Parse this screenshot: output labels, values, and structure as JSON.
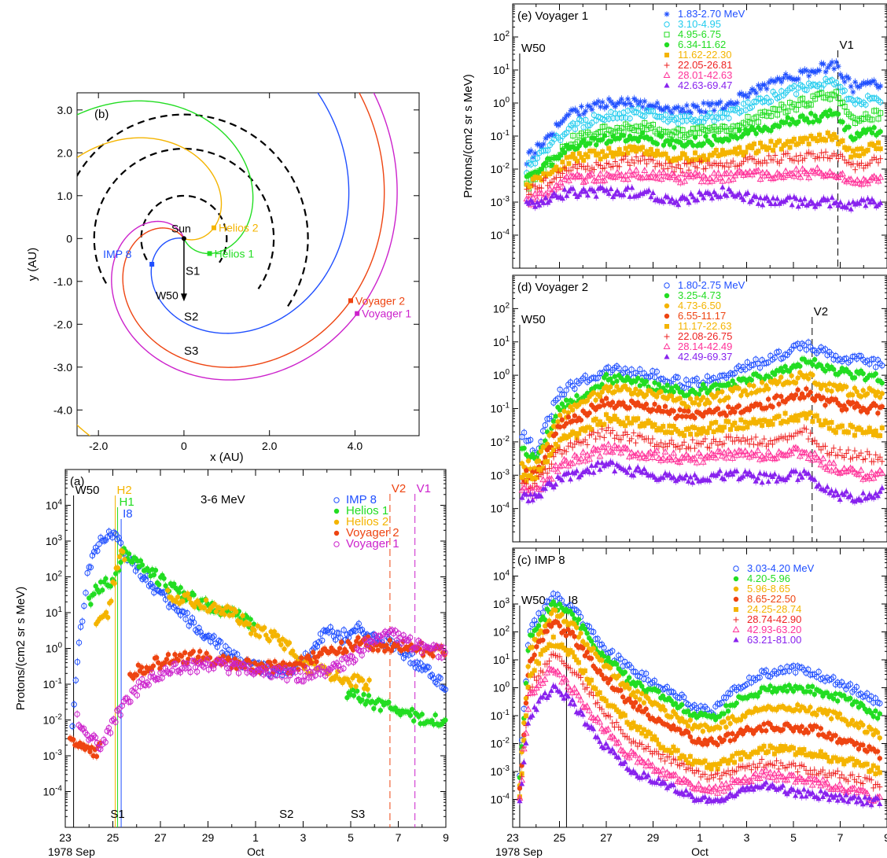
{
  "chart_data": [
    {
      "id": "b",
      "type": "diagram",
      "panel_label": "(b)",
      "xlabel": "x (AU)",
      "ylabel": "y (AU)",
      "xlim": [
        -2.5,
        5.5
      ],
      "ylim": [
        -4.6,
        3.4
      ],
      "xticks": [
        "-2.0",
        "0",
        "2.0",
        "4.0"
      ],
      "xtick_values": [
        -2,
        0,
        2,
        4
      ],
      "yticks": [
        "3.0",
        "2.0",
        "1.0",
        "0",
        "-1.0",
        "-2.0",
        "-3.0",
        "-4.0"
      ],
      "ytick_values": [
        3,
        2,
        1,
        0,
        -1,
        -2,
        -3,
        -4
      ],
      "sun_label": "Sun",
      "arrow_label": "W50",
      "spacecraft": [
        {
          "name": "IMP 8",
          "x": -0.75,
          "y": -0.6,
          "color": "#1f4fff"
        },
        {
          "name": "Helios 2",
          "x": 0.7,
          "y": 0.25,
          "color": "#f4b400"
        },
        {
          "name": "Helios 1",
          "x": 0.6,
          "y": -0.35,
          "color": "#22dd22"
        },
        {
          "name": "Voyager 2",
          "x": 3.9,
          "y": -1.45,
          "color": "#ee4411"
        },
        {
          "name": "Voyager 1",
          "x": 4.05,
          "y": -1.75,
          "color": "#cc22cc"
        }
      ],
      "shocks": [
        {
          "name": "S1",
          "radius": 1.0
        },
        {
          "name": "S2",
          "radius": 2.1
        },
        {
          "name": "S3",
          "radius": 2.9
        }
      ]
    },
    {
      "id": "a",
      "type": "scatter",
      "panel_label": "(a)",
      "energy_label": "3-6 MeV",
      "ylabel": "Protons/(cm2 sr s MeV)",
      "xlim": [
        23,
        39
      ],
      "ylim_log10": [
        -5,
        5
      ],
      "xticks": [
        "23",
        "25",
        "27",
        "29",
        "1",
        "3",
        "5",
        "7",
        "9"
      ],
      "xtick_values": [
        23,
        25,
        27,
        29,
        31,
        33,
        35,
        37,
        39
      ],
      "ytick_labels": [
        "10-4",
        "10-3",
        "10-2",
        "10-1",
        "100",
        "101",
        "102",
        "103",
        "104"
      ],
      "date_left": "1978 Sep",
      "date_mid": "Oct",
      "series": [
        {
          "name": "IMP 8",
          "color": "#1f4fff",
          "marker": "circle-open",
          "x": [
            23.3,
            23.6,
            24.0,
            24.4,
            24.8,
            25.2,
            25.6,
            26.0,
            26.6,
            27.3,
            28.0,
            29.0,
            30.0,
            31.0,
            32.0,
            32.8,
            33.5,
            34.0,
            34.6,
            35.2,
            35.8,
            36.5,
            37.2,
            38.0,
            38.6,
            39.0
          ],
          "y": [
            0.01,
            2,
            200,
            800,
            1800,
            1000,
            400,
            200,
            60,
            20,
            8,
            2,
            0.6,
            0.3,
            0.2,
            0.3,
            1.5,
            3,
            2,
            4,
            2,
            1.5,
            0.8,
            0.3,
            0.15,
            0.1
          ]
        },
        {
          "name": "Helios 1",
          "color": "#22dd22",
          "marker": "circle-filled",
          "x": [
            24.0,
            24.5,
            25.0,
            25.5,
            26.0,
            26.5,
            27.0,
            28.0,
            29.0,
            30.0,
            30.8,
            35.0,
            36.0,
            37.0,
            38.0,
            39.0
          ],
          "y": [
            20,
            60,
            80,
            500,
            300,
            150,
            80,
            30,
            15,
            10,
            5,
            0.05,
            0.03,
            0.02,
            0.01,
            0.01
          ]
        },
        {
          "name": "Helios 2",
          "color": "#f4b400",
          "marker": "circle-filled",
          "x": [
            24.3,
            24.8,
            25.3,
            27.5,
            28.5,
            30.0,
            31.0,
            32.0,
            33.2,
            34.0,
            34.6,
            35.2,
            35.8
          ],
          "y": [
            5,
            10,
            500,
            30,
            20,
            10,
            3,
            2,
            0.3,
            0.2,
            0.15,
            0.12,
            0.1
          ]
        },
        {
          "name": "Voyager 2",
          "color": "#ee4411",
          "marker": "circle-filled",
          "x": [
            23.2,
            23.8,
            24.3,
            25.8,
            26.3,
            27.5,
            28.5,
            30.0,
            31.5,
            32.5,
            33.5,
            34.5,
            35.5,
            36.5,
            37.5,
            38.5,
            39.0
          ],
          "y": [
            0.003,
            0.002,
            0.001,
            0.2,
            0.3,
            0.5,
            0.6,
            0.4,
            0.3,
            0.3,
            0.6,
            1.0,
            1.5,
            1.2,
            1.0,
            0.9,
            0.8
          ]
        },
        {
          "name": "Voyager 1",
          "color": "#cc22cc",
          "marker": "circle-open",
          "x": [
            23.5,
            24.0,
            24.5,
            25.5,
            26.2,
            27.0,
            28.0,
            29.0,
            30.0,
            31.0,
            32.0,
            33.0,
            34.0,
            35.0,
            35.8,
            36.5,
            37.0,
            38.0,
            39.0
          ],
          "y": [
            0.01,
            0.003,
            0.002,
            0.03,
            0.1,
            0.2,
            0.3,
            0.35,
            0.3,
            0.25,
            0.2,
            0.18,
            0.25,
            0.5,
            1.5,
            3,
            2,
            1,
            0.8
          ]
        }
      ],
      "event_lines": [
        {
          "label": "W50",
          "x": 23.35,
          "color": "#000000",
          "style": "solid"
        },
        {
          "label": "H2",
          "x": 25.1,
          "color": "#f4b400",
          "style": "solid"
        },
        {
          "label": "H1",
          "x": 25.2,
          "color": "#22dd22",
          "style": "solid"
        },
        {
          "label": "I8",
          "x": 25.35,
          "color": "#1f4fff",
          "style": "solid"
        },
        {
          "label": "V2",
          "x": 36.65,
          "color": "#ee4411",
          "style": "dashed"
        },
        {
          "label": "V1",
          "x": 37.7,
          "color": "#cc22cc",
          "style": "dashed"
        }
      ],
      "shock_labels": [
        {
          "label": "S1",
          "x": 25.2
        },
        {
          "label": "S2",
          "x": 32.3
        },
        {
          "label": "S3",
          "x": 35.3
        }
      ]
    },
    {
      "id": "e",
      "type": "scatter",
      "panel_label": "(e) Voyager 1",
      "ylabel": "Protons/(cm2 sr s MeV)",
      "xlim": [
        23,
        39
      ],
      "ylim_log10": [
        -5,
        3
      ],
      "ytick_labels": [
        "10-4",
        "10-3",
        "10-2",
        "10-1",
        "100",
        "101",
        "102"
      ],
      "event_lines": [
        {
          "label": "W50",
          "x": 23.3,
          "style": "solid"
        },
        {
          "label": "V1",
          "x": 36.9,
          "style": "dashed"
        }
      ],
      "channels": [
        {
          "name": "1.83-2.70 MeV",
          "color": "#1f4fff",
          "marker": "asterisk",
          "y_at": [
            0.02,
            0.5,
            1,
            1,
            0.6,
            0.8,
            4,
            15,
            3,
            4
          ]
        },
        {
          "name": "3.10-4.95",
          "color": "#22ccee",
          "marker": "circle-open",
          "y_at": [
            0.01,
            0.2,
            0.4,
            0.5,
            0.3,
            0.4,
            1.5,
            5,
            1,
            1.5
          ]
        },
        {
          "name": "4.95-6.75",
          "color": "#22dd22",
          "marker": "square-open",
          "y_at": [
            0.003,
            0.07,
            0.15,
            0.2,
            0.12,
            0.15,
            0.5,
            2,
            0.3,
            0.5
          ]
        },
        {
          "name": "6.34-11.62",
          "color": "#22dd22",
          "marker": "circle-filled",
          "y_at": [
            0.005,
            0.05,
            0.08,
            0.1,
            0.06,
            0.08,
            0.2,
            0.5,
            0.1,
            0.15
          ]
        },
        {
          "name": "11.62-22.30",
          "color": "#f4b400",
          "marker": "square-filled",
          "y_at": [
            0.003,
            0.02,
            0.03,
            0.04,
            0.02,
            0.03,
            0.05,
            0.1,
            0.03,
            0.05
          ]
        },
        {
          "name": "22.05-26.81",
          "color": "#ee2222",
          "marker": "plus",
          "y_at": [
            0.002,
            0.01,
            0.015,
            0.02,
            0.01,
            0.015,
            0.02,
            0.03,
            0.01,
            0.02
          ]
        },
        {
          "name": "28.01-42.63",
          "color": "#ff3399",
          "marker": "triangle-open",
          "y_at": [
            0.001,
            0.005,
            0.006,
            0.007,
            0.005,
            0.006,
            0.007,
            0.008,
            0.004,
            0.005
          ]
        },
        {
          "name": "42.63-69.47",
          "color": "#8822ee",
          "marker": "triangle-filled",
          "y_at": [
            0.0008,
            0.002,
            0.002,
            0.002,
            0.001,
            0.002,
            0.001,
            0.001,
            0.0008,
            0.001
          ]
        }
      ],
      "x_at": [
        23.6,
        25.5,
        27,
        28.5,
        30,
        32,
        34,
        36.8,
        37.5,
        38.8
      ]
    },
    {
      "id": "d",
      "type": "scatter",
      "panel_label": "(d) Voyager 2",
      "xlim": [
        23,
        39
      ],
      "ylim_log10": [
        -5,
        3
      ],
      "ytick_labels": [
        "10-4",
        "10-3",
        "10-2",
        "10-1",
        "100",
        "101",
        "102"
      ],
      "event_lines": [
        {
          "label": "W50",
          "x": 23.3,
          "style": "solid"
        },
        {
          "label": "V2",
          "x": 35.8,
          "style": "dashed"
        }
      ],
      "channels": [
        {
          "name": "1.80-2.75 MeV",
          "color": "#1f4fff",
          "marker": "circle-open",
          "y_at": [
            0.02,
            0.005,
            0.3,
            1.5,
            1,
            0.5,
            1,
            3,
            8,
            4,
            3,
            2
          ]
        },
        {
          "name": "3.25-4.73",
          "color": "#22dd22",
          "marker": "circle-filled",
          "y_at": [
            0.005,
            0.003,
            0.1,
            0.8,
            0.5,
            0.3,
            0.5,
            1,
            3,
            1.5,
            1,
            0.8
          ]
        },
        {
          "name": "4.73-6.50",
          "color": "#f4b400",
          "marker": "circle-filled",
          "y_at": [
            0.002,
            0.002,
            0.05,
            0.4,
            0.3,
            0.15,
            0.25,
            0.5,
            1,
            0.4,
            0.3,
            0.3
          ]
        },
        {
          "name": "6.55-11.17",
          "color": "#ee4411",
          "marker": "circle-filled",
          "y_at": [
            0.001,
            0.001,
            0.03,
            0.15,
            0.1,
            0.06,
            0.08,
            0.15,
            0.3,
            0.15,
            0.1,
            0.1
          ]
        },
        {
          "name": "11.17-22.63",
          "color": "#f4b400",
          "marker": "square-filled",
          "y_at": [
            0.0008,
            0.0008,
            0.01,
            0.05,
            0.03,
            0.02,
            0.03,
            0.04,
            0.07,
            0.03,
            0.02,
            0.02
          ]
        },
        {
          "name": "22.08-26.75",
          "color": "#ee2222",
          "marker": "plus",
          "y_at": [
            0.0005,
            0.0005,
            0.005,
            0.02,
            0.01,
            0.008,
            0.01,
            0.01,
            0.02,
            0.005,
            0.004,
            0.003
          ]
        },
        {
          "name": "28.14-42.49",
          "color": "#ff3399",
          "marker": "triangle-open",
          "y_at": [
            0.0003,
            0.0003,
            0.002,
            0.006,
            0.004,
            0.003,
            0.004,
            0.004,
            0.005,
            0.002,
            0.001,
            0.001
          ]
        },
        {
          "name": "42.49-69.37",
          "color": "#8822ee",
          "marker": "triangle-filled",
          "y_at": [
            0.0002,
            0.0002,
            0.0008,
            0.002,
            0.001,
            0.0008,
            0.001,
            0.0008,
            0.001,
            0.0003,
            0.0002,
            0.0003
          ]
        }
      ],
      "x_at": [
        23.4,
        24,
        25,
        27,
        29,
        30.5,
        32,
        34,
        35.5,
        36.5,
        37.8,
        38.8
      ]
    },
    {
      "id": "c",
      "type": "scatter",
      "panel_label": "(c) IMP 8",
      "xlim": [
        23,
        39
      ],
      "ylim_log10": [
        -5,
        5
      ],
      "ytick_labels": [
        "10-4",
        "10-3",
        "10-2",
        "10-1",
        "100",
        "101",
        "102",
        "103",
        "104"
      ],
      "xticks": [
        "23",
        "25",
        "27",
        "29",
        "1",
        "3",
        "5",
        "7",
        "9"
      ],
      "xtick_values": [
        23,
        25,
        27,
        29,
        31,
        33,
        35,
        37,
        39
      ],
      "date_left": "1978 Sep",
      "date_mid": "Oct",
      "event_lines": [
        {
          "label": "W50",
          "x": 23.3,
          "style": "solid"
        },
        {
          "label": "I8",
          "x": 25.3,
          "style": "solid"
        }
      ],
      "channels": [
        {
          "name": "3.03-4.20 MeV",
          "color": "#1f4fff",
          "marker": "circle-open",
          "y_at": [
            0.001,
            100,
            2000,
            800,
            30,
            5,
            1,
            0.2,
            0.15,
            1,
            3,
            5,
            3,
            1,
            0.3
          ]
        },
        {
          "name": "4.20-5.96",
          "color": "#22dd22",
          "marker": "circle-filled",
          "y_at": [
            0.0005,
            50,
            1000,
            500,
            15,
            2,
            0.4,
            0.1,
            0.08,
            0.3,
            0.8,
            1,
            0.8,
            0.3,
            0.1
          ]
        },
        {
          "name": "5.96-8.65",
          "color": "#f4b400",
          "marker": "circle-filled",
          "y_at": [
            0.0003,
            20,
            500,
            200,
            8,
            0.8,
            0.15,
            0.04,
            0.03,
            0.08,
            0.2,
            0.2,
            0.15,
            0.06,
            0.02
          ]
        },
        {
          "name": "8.65-22.50",
          "color": "#ee4411",
          "marker": "circle-filled",
          "y_at": [
            0.0002,
            10,
            200,
            80,
            3,
            0.3,
            0.05,
            0.015,
            0.01,
            0.02,
            0.04,
            0.04,
            0.03,
            0.01,
            0.004
          ]
        },
        {
          "name": "24.25-28.74",
          "color": "#f4b400",
          "marker": "square-filled",
          "y_at": [
            0.0001,
            3,
            50,
            15,
            0.5,
            0.05,
            0.008,
            0.002,
            0.0015,
            0.003,
            0.006,
            0.006,
            0.004,
            0.002,
            0.001
          ]
        },
        {
          "name": "28.74-42.90",
          "color": "#ee2222",
          "marker": "plus",
          "y_at": [
            0.0001,
            1,
            15,
            5,
            0.15,
            0.015,
            0.003,
            0.0008,
            0.0006,
            0.001,
            0.002,
            0.0015,
            0.001,
            0.0006,
            0.0003
          ]
        },
        {
          "name": "42.93-63.20",
          "color": "#ff3399",
          "marker": "triangle-open",
          "y_at": [
            0.0001,
            0.5,
            5,
            1,
            0.04,
            0.004,
            0.0008,
            0.0003,
            0.0002,
            0.0004,
            0.0008,
            0.0006,
            0.0004,
            0.0002,
            0.0001
          ]
        },
        {
          "name": "63.21-81.00",
          "color": "#8822ee",
          "marker": "triangle-filled",
          "y_at": [
            0.0001,
            0.1,
            1,
            0.3,
            0.01,
            0.0012,
            0.0003,
            0.00012,
            0.0001,
            0.00015,
            0.0003,
            0.0002,
            0.00015,
            0.0001,
            8e-05
          ]
        }
      ],
      "x_at": [
        23.3,
        23.7,
        24.7,
        25.5,
        26.8,
        28,
        29.5,
        30.8,
        31.6,
        32.5,
        33.7,
        34.8,
        36,
        37.5,
        38.7
      ]
    }
  ]
}
